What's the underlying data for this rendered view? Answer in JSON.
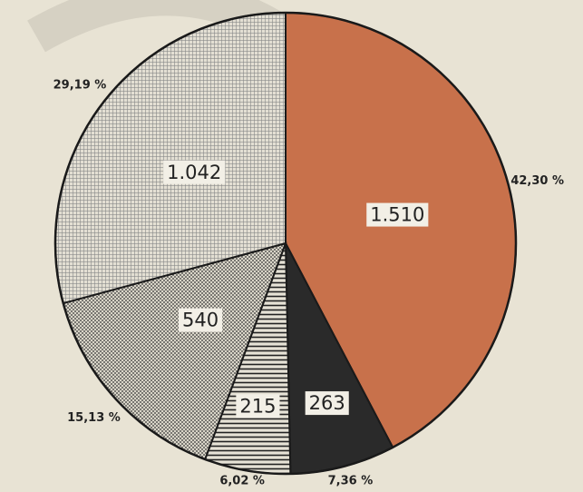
{
  "chart_data": {
    "type": "pie",
    "categories": [
      null,
      null,
      null,
      null,
      null
    ],
    "values": [
      1510,
      263,
      215,
      540,
      1042
    ],
    "value_labels": [
      "1.510",
      "263",
      "215",
      "540",
      "1.042"
    ],
    "percent_labels": [
      "42,30 %",
      "7,36 %",
      "6,02 %",
      "15,13 %",
      "29,19 %"
    ],
    "colors": [
      "#c8714b",
      "#2a2a2a",
      "#dedbd0",
      "#cfcbbe",
      "#dcd8cc"
    ],
    "patterns": [
      "solid",
      "solid",
      "horizontal-lines",
      "dots",
      "crosshatch"
    ]
  }
}
